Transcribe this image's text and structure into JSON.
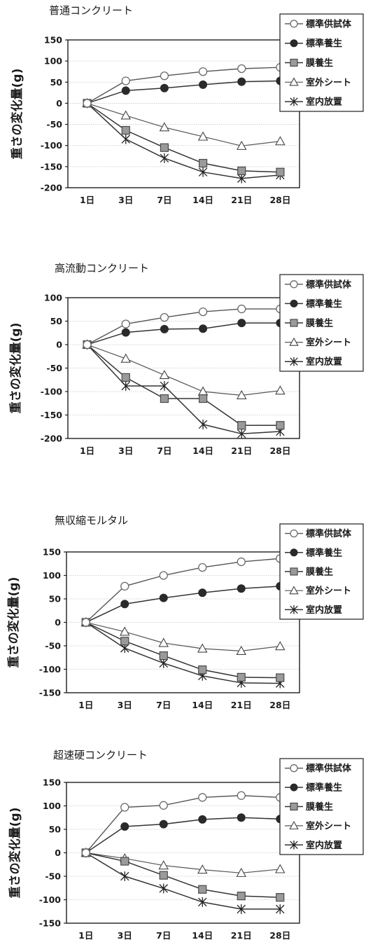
{
  "chart_data": [
    {
      "type": "line",
      "title": "普通コンクリート",
      "ylabel": "重さの変化量(g)",
      "xlabel": "",
      "categories": [
        "1日",
        "3日",
        "7日",
        "14日",
        "21日",
        "28日"
      ],
      "ylim": [
        -200,
        150
      ],
      "yticks": [
        150,
        100,
        50,
        0,
        -50,
        -100,
        -150,
        -200
      ],
      "grid": true,
      "legend": "top-right",
      "series": [
        {
          "name": "標準供試体",
          "marker": "open-circle",
          "values": [
            0,
            53,
            65,
            75,
            82,
            85
          ]
        },
        {
          "name": "標準養生",
          "marker": "filled-circle",
          "values": [
            0,
            30,
            36,
            44,
            51,
            53
          ]
        },
        {
          "name": "膜養生",
          "marker": "square",
          "values": [
            0,
            -64,
            -105,
            -142,
            -160,
            -163
          ]
        },
        {
          "name": "室外シート",
          "marker": "triangle",
          "values": [
            0,
            -29,
            -57,
            -79,
            -101,
            -90
          ]
        },
        {
          "name": "室内放置",
          "marker": "star",
          "values": [
            0,
            -85,
            -130,
            -163,
            -178,
            -170
          ]
        }
      ]
    },
    {
      "type": "line",
      "title": "高流動コンクリート",
      "ylabel": "重さの変化量(g)",
      "xlabel": "",
      "categories": [
        "1日",
        "3日",
        "7日",
        "14日",
        "21日",
        "28日"
      ],
      "ylim": [
        -200,
        100
      ],
      "yticks": [
        100,
        50,
        0,
        -50,
        -100,
        -150,
        -200
      ],
      "grid": true,
      "legend": "top-right",
      "series": [
        {
          "name": "標準供試体",
          "marker": "open-circle",
          "values": [
            0,
            44,
            58,
            70,
            76,
            76
          ]
        },
        {
          "name": "標準養生",
          "marker": "filled-circle",
          "values": [
            0,
            26,
            33,
            34,
            46,
            46
          ]
        },
        {
          "name": "膜養生",
          "marker": "square",
          "values": [
            0,
            -70,
            -115,
            -115,
            -172,
            -172
          ]
        },
        {
          "name": "室外シート",
          "marker": "triangle",
          "values": [
            0,
            -30,
            -65,
            -100,
            -108,
            -98
          ]
        },
        {
          "name": "室内放置",
          "marker": "star",
          "values": [
            0,
            -88,
            -88,
            -170,
            -190,
            -185
          ]
        }
      ]
    },
    {
      "type": "line",
      "title": "無収縮モルタル",
      "ylabel": "重さの変化量(g)",
      "xlabel": "",
      "categories": [
        "1日",
        "3日",
        "7日",
        "14日",
        "21日",
        "28日"
      ],
      "ylim": [
        -150,
        150
      ],
      "yticks": [
        150,
        100,
        50,
        0,
        -50,
        -100,
        -150
      ],
      "grid": true,
      "legend": "top-right",
      "series": [
        {
          "name": "標準供試体",
          "marker": "open-circle",
          "values": [
            0,
            77,
            100,
            117,
            129,
            136
          ]
        },
        {
          "name": "標準養生",
          "marker": "filled-circle",
          "values": [
            0,
            39,
            52,
            63,
            72,
            77
          ]
        },
        {
          "name": "膜養生",
          "marker": "square",
          "values": [
            0,
            -40,
            -71,
            -101,
            -117,
            -118
          ]
        },
        {
          "name": "室外シート",
          "marker": "triangle",
          "values": [
            0,
            -20,
            -44,
            -56,
            -61,
            -51
          ]
        },
        {
          "name": "室内放置",
          "marker": "star",
          "values": [
            0,
            -55,
            -87,
            -114,
            -129,
            -130
          ]
        }
      ]
    },
    {
      "type": "line",
      "title": "超速硬コンクリート",
      "ylabel": "重さの変化量(g)",
      "xlabel": "",
      "categories": [
        "1日",
        "3日",
        "7日",
        "14日",
        "21日",
        "28日"
      ],
      "ylim": [
        -150,
        150
      ],
      "yticks": [
        150,
        100,
        50,
        0,
        -50,
        -100,
        -150
      ],
      "grid": true,
      "legend": "top-right",
      "series": [
        {
          "name": "標準供試体",
          "marker": "open-circle",
          "values": [
            0,
            97,
            101,
            118,
            122,
            118
          ]
        },
        {
          "name": "標準養生",
          "marker": "filled-circle",
          "values": [
            0,
            56,
            61,
            71,
            75,
            72
          ]
        },
        {
          "name": "膜養生",
          "marker": "square",
          "values": [
            0,
            -18,
            -48,
            -78,
            -92,
            -95
          ]
        },
        {
          "name": "室外シート",
          "marker": "triangle",
          "values": [
            0,
            -12,
            -27,
            -36,
            -43,
            -35
          ]
        },
        {
          "name": "室内放置",
          "marker": "star",
          "values": [
            0,
            -50,
            -76,
            -105,
            -120,
            -120
          ]
        }
      ]
    }
  ]
}
